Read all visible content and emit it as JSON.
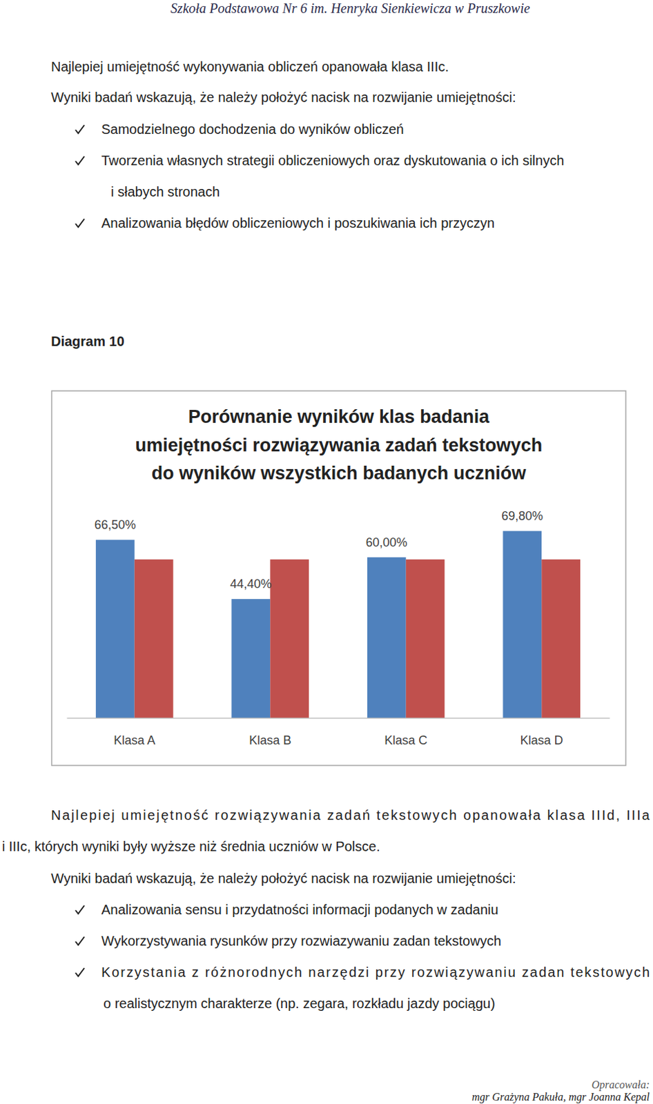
{
  "header": {
    "title": "Szkoła Podstawowa Nr 6 im. Henryka Sienkiewicza w Pruszkowie"
  },
  "section1": {
    "summary": "Najlepiej umiejętność wykonywania obliczeń opanowała klasa IIIc.",
    "intro": "Wyniki badań wskazują, że należy położyć nacisk na rozwijanie umiejętności:",
    "bullets": [
      [
        "Samodzielnego dochodzenia do wyników obliczeń"
      ],
      [
        "Tworzenia własnych strategii obliczeniowych oraz dyskutowania o ich silnych",
        "i słabych stronach"
      ],
      [
        "Analizowania błędów obliczeniowych i poszukiwania ich przyczyn"
      ]
    ]
  },
  "diagram_label": "Diagram 10",
  "chart_data": {
    "type": "bar",
    "title": [
      "Porównanie wyników klas badania",
      "umiejętności rozwiązywania zadań tekstowych",
      "do wyników wszystkich badanych uczniów"
    ],
    "categories": [
      "Klasa A",
      "Klasa B",
      "Klasa C",
      "Klasa D"
    ],
    "series": [
      {
        "color": "#4f81bd",
        "values": [
          66.5,
          44.4,
          60.0,
          69.8
        ],
        "value_labels": [
          "66,50%",
          "44,40%",
          "60,00%",
          "69,80%"
        ],
        "data_labels": true
      },
      {
        "color": "#c0504d",
        "values": [
          59.2,
          59.2,
          59.2,
          59.2
        ],
        "data_labels": false
      }
    ],
    "ylim": [
      0,
      80
    ],
    "tick_labels": "x",
    "grid": false
  },
  "section2": {
    "summary": [
      "Najlepiej umiejętność rozwiązywania zadań tekstowych opanowała klasa IIId, IIIa",
      "i IIIc, których wyniki były wyższe niż średnia uczniów w Polsce."
    ],
    "intro": "Wyniki badań wskazują, że należy położyć nacisk na rozwijanie umiejętności:",
    "bullets": [
      [
        "Analizowania sensu i przydatności informacji podanych w zadaniu"
      ],
      [
        "Wykorzystywania rysunków przy rozwiazywaniu zadan tekstowych"
      ],
      [
        "Korzystania z różnorodnych narzędzi przy rozwiązywaniu zadan tekstowych",
        "o realistycznym charakterze (np. zegara, rozkładu jazdy pociągu)"
      ]
    ]
  },
  "footer": {
    "label": "Opracowała:",
    "authors": "mgr Grażyna Pakuła, mgr Joanna Kepal"
  }
}
